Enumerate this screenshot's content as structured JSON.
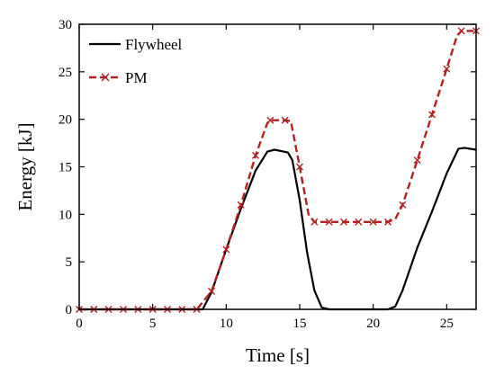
{
  "chart_data": {
    "type": "line",
    "xlabel": "Time [s]",
    "ylabel": "Energy [kJ]",
    "xlim": [
      0,
      27
    ],
    "ylim": [
      0,
      30
    ],
    "xticks": [
      0,
      5,
      10,
      15,
      20,
      25
    ],
    "yticks": [
      0,
      5,
      10,
      15,
      20,
      25,
      30
    ],
    "grid": false,
    "legend_position": "top-left",
    "series": [
      {
        "name": "Flywheel",
        "color": "#000000",
        "style": "solid",
        "marker": "none",
        "x": [
          0,
          8.4,
          9,
          10,
          11,
          12,
          12.8,
          13.3,
          14.2,
          14.5,
          15,
          15.5,
          16,
          16.5,
          17,
          18,
          20,
          21,
          21.5,
          22,
          23,
          24,
          25,
          25.8,
          26.2,
          27
        ],
        "y": [
          0,
          0,
          1.8,
          6.3,
          10.6,
          14.6,
          16.6,
          16.8,
          16.5,
          15.7,
          11.5,
          6,
          2,
          0.2,
          0,
          0,
          0,
          0,
          0.3,
          2,
          6.5,
          10.3,
          14.3,
          16.9,
          17,
          16.8
        ]
      },
      {
        "name": "PM",
        "color": "#b22222",
        "style": "dashed",
        "marker": "x",
        "x": [
          0,
          1,
          2,
          3,
          4,
          5,
          6,
          7,
          8,
          9,
          10,
          11,
          12,
          12.8,
          13,
          14,
          14.4,
          15,
          15.6,
          16,
          17,
          18,
          19,
          20,
          21,
          21.5,
          22,
          23,
          24,
          25,
          25.7,
          26,
          27
        ],
        "y": [
          0,
          0,
          0,
          0,
          0,
          0,
          0,
          0,
          0,
          1.9,
          6.3,
          11,
          16.2,
          19.6,
          19.9,
          19.9,
          19.8,
          15,
          10,
          9.2,
          9.2,
          9.2,
          9.2,
          9.2,
          9.2,
          9.5,
          11,
          15.7,
          20.5,
          25.3,
          28.8,
          29.3,
          29.3
        ],
        "marker_x": [
          0,
          1,
          2,
          3,
          4,
          5,
          6,
          7,
          8,
          9,
          10,
          11,
          12,
          13,
          14,
          15,
          16,
          17,
          18,
          19,
          20,
          21,
          22,
          23,
          24,
          25,
          26,
          27
        ],
        "marker_y": [
          0,
          0,
          0,
          0,
          0,
          0,
          0,
          0,
          0,
          1.9,
          6.3,
          11,
          16.2,
          19.9,
          19.9,
          15,
          9.2,
          9.2,
          9.2,
          9.2,
          9.2,
          9.2,
          11,
          15.7,
          20.5,
          25.3,
          29.3,
          29.3
        ]
      }
    ]
  }
}
